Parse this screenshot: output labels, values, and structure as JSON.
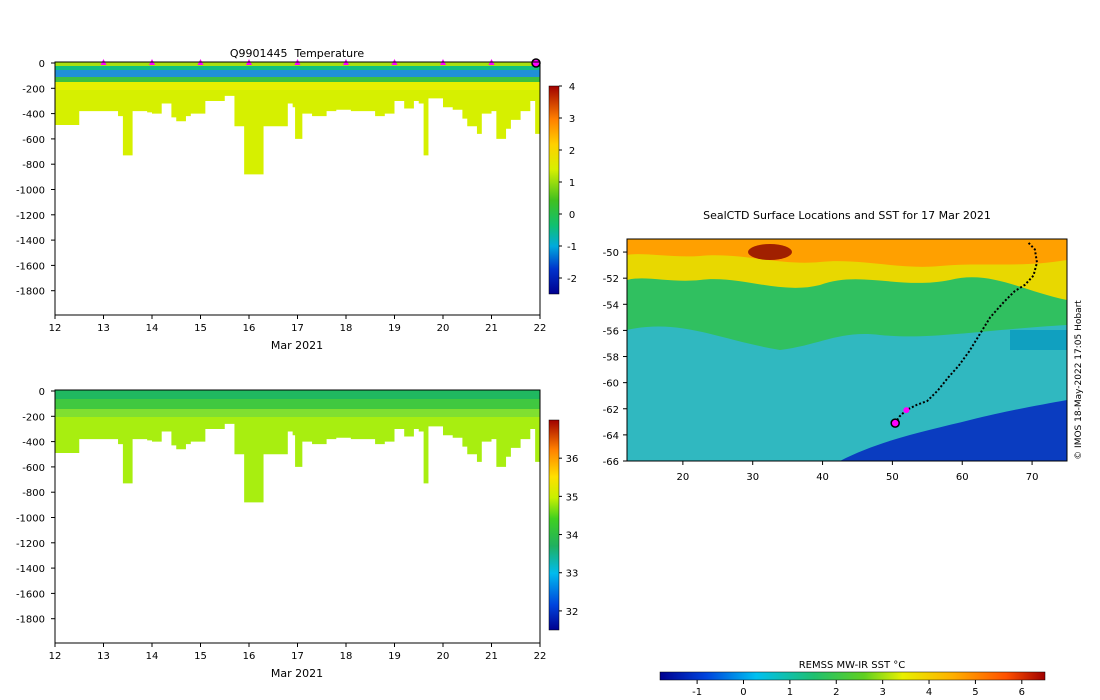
{
  "chart_data": [
    {
      "type": "heatmap",
      "id": "temperature",
      "title": "Q9901445  Temperature",
      "xlabel": "Mar 2021",
      "x_ticks": [
        "12",
        "13",
        "14",
        "15",
        "16",
        "17",
        "18",
        "19",
        "20",
        "21",
        "22"
      ],
      "xlim": [
        12,
        22
      ],
      "y_ticks": [
        "0",
        "-200",
        "-400",
        "-600",
        "-800",
        "-1000",
        "-1200",
        "-1400",
        "-1600",
        "-1800"
      ],
      "ylim": [
        -2000,
        0
      ],
      "colorbar": {
        "ticks": [
          "-2",
          "-1",
          "0",
          "1",
          "2",
          "3",
          "4"
        ],
        "range": [
          -2.5,
          4
        ]
      },
      "profile_markers": [
        "13",
        "14",
        "15",
        "16",
        "17",
        "18",
        "19",
        "20",
        "21"
      ],
      "max_depth_profile": [
        [
          12.0,
          -490
        ],
        [
          12.5,
          -380
        ],
        [
          12.9,
          -380
        ],
        [
          13.3,
          -420
        ],
        [
          13.4,
          -730
        ],
        [
          13.6,
          -380
        ],
        [
          13.9,
          -390
        ],
        [
          14.0,
          -400
        ],
        [
          14.2,
          -320
        ],
        [
          14.4,
          -430
        ],
        [
          14.5,
          -460
        ],
        [
          14.7,
          -420
        ],
        [
          14.8,
          -400
        ],
        [
          15.1,
          -300
        ],
        [
          15.3,
          -300
        ],
        [
          15.5,
          -260
        ],
        [
          15.7,
          -500
        ],
        [
          15.9,
          -880
        ],
        [
          16.2,
          -880
        ],
        [
          16.3,
          -500
        ],
        [
          16.7,
          -500
        ],
        [
          16.8,
          -320
        ],
        [
          16.9,
          -350
        ],
        [
          16.95,
          -600
        ],
        [
          17.1,
          -400
        ],
        [
          17.3,
          -420
        ],
        [
          17.6,
          -380
        ],
        [
          17.8,
          -370
        ],
        [
          18.1,
          -380
        ],
        [
          18.3,
          -380
        ],
        [
          18.6,
          -420
        ],
        [
          18.8,
          -400
        ],
        [
          19.0,
          -300
        ],
        [
          19.2,
          -360
        ],
        [
          19.4,
          -300
        ],
        [
          19.5,
          -320
        ],
        [
          19.6,
          -730
        ],
        [
          19.7,
          -280
        ],
        [
          20.0,
          -350
        ],
        [
          20.2,
          -370
        ],
        [
          20.4,
          -440
        ],
        [
          20.5,
          -500
        ],
        [
          20.7,
          -560
        ],
        [
          20.8,
          -400
        ],
        [
          21.0,
          -380
        ],
        [
          21.1,
          -600
        ],
        [
          21.3,
          -520
        ],
        [
          21.4,
          -450
        ],
        [
          21.6,
          -380
        ],
        [
          21.8,
          -300
        ],
        [
          21.9,
          -560
        ]
      ]
    },
    {
      "type": "heatmap",
      "id": "salinity",
      "title": "",
      "xlabel": "Mar 2021",
      "x_ticks": [
        "12",
        "13",
        "14",
        "15",
        "16",
        "17",
        "18",
        "19",
        "20",
        "21",
        "22"
      ],
      "xlim": [
        12,
        22
      ],
      "y_ticks": [
        "0",
        "-200",
        "-400",
        "-600",
        "-800",
        "-1000",
        "-1200",
        "-1400",
        "-1600",
        "-1800"
      ],
      "ylim": [
        -2000,
        0
      ],
      "colorbar": {
        "ticks": [
          "32",
          "33",
          "34",
          "35",
          "36"
        ],
        "range": [
          31.5,
          37
        ]
      }
    },
    {
      "type": "heatmap",
      "id": "sst_map",
      "title": "SealCTD Surface Locations and SST for 17 Mar 2021",
      "x_ticks": [
        "20",
        "30",
        "40",
        "50",
        "60",
        "70"
      ],
      "xlim": [
        12,
        75
      ],
      "y_ticks": [
        "-50",
        "-52",
        "-54",
        "-56",
        "-58",
        "-60",
        "-62",
        "-64",
        "-66"
      ],
      "ylim": [
        -66,
        -49
      ],
      "track": [
        [
          69.5,
          -49.3
        ],
        [
          70.4,
          -49.8
        ],
        [
          70.7,
          -50.8
        ],
        [
          70.2,
          -51.8
        ],
        [
          69.0,
          -52.5
        ],
        [
          67.5,
          -53.0
        ],
        [
          66.0,
          -53.8
        ],
        [
          64.0,
          -55.0
        ],
        [
          62.5,
          -56.3
        ],
        [
          61.0,
          -57.6
        ],
        [
          59.5,
          -58.7
        ],
        [
          58.0,
          -59.6
        ],
        [
          56.5,
          -60.6
        ],
        [
          55.0,
          -61.4
        ],
        [
          53.5,
          -61.7
        ],
        [
          52.0,
          -62.1
        ],
        [
          51.0,
          -62.6
        ],
        [
          50.4,
          -63.1
        ]
      ],
      "current_position": [
        50.4,
        -63.1
      ],
      "recent_position": [
        52.0,
        -62.1
      ],
      "colorbar": {
        "label": "REMSS MW-IR SST °C",
        "ticks": [
          "-1",
          "0",
          "1",
          "2",
          "3",
          "4",
          "5",
          "6"
        ],
        "range": [
          -1.8,
          6.5
        ]
      }
    }
  ],
  "credit": "© IMOS 18-May-2022 17:05 Hobart"
}
